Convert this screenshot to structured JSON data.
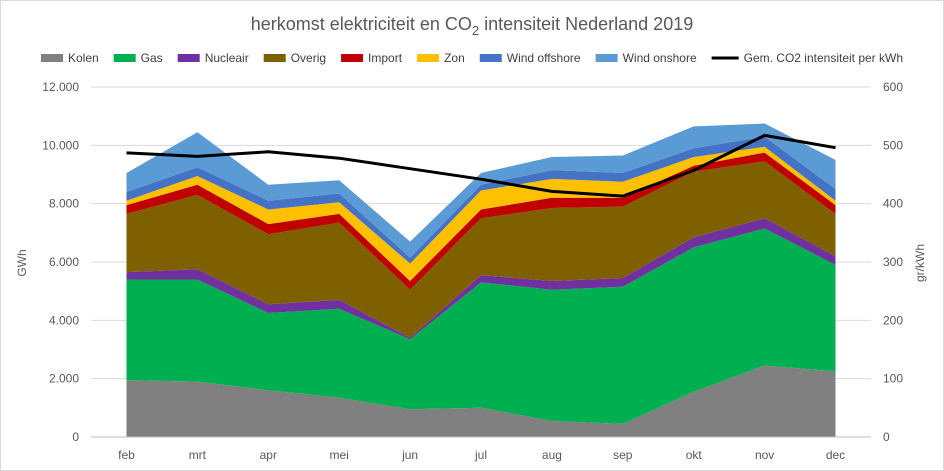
{
  "chart_data": {
    "type": "area",
    "title": {
      "main": "herkomst elektriciteit en CO",
      "subscript": "2",
      "rest": " intensiteit Nederland 2019"
    },
    "categories": [
      "feb",
      "mrt",
      "apr",
      "mei",
      "jun",
      "jul",
      "aug",
      "sep",
      "okt",
      "nov",
      "dec"
    ],
    "ylabel": "GWh",
    "ylabel_right": "gr/kWh",
    "ylim": [
      0,
      12000
    ],
    "ylim_right": [
      0,
      600
    ],
    "yticks": [
      "0",
      "2.000",
      "4.000",
      "6.000",
      "8.000",
      "10.000",
      "12.000"
    ],
    "yticks_right": [
      "0",
      "100",
      "200",
      "300",
      "400",
      "500",
      "600"
    ],
    "grid": true,
    "legend_position": "top",
    "stacked": true,
    "series": [
      {
        "name": "Kolen",
        "color": "#808080",
        "values": [
          1950,
          1900,
          1600,
          1350,
          950,
          1000,
          550,
          450,
          1550,
          2450,
          2250
        ]
      },
      {
        "name": "Gas",
        "color": "#00b050",
        "values": [
          3450,
          3500,
          2650,
          3050,
          2400,
          4300,
          4500,
          4700,
          4950,
          4700,
          3650
        ]
      },
      {
        "name": "Nucleair",
        "color": "#7030a0",
        "values": [
          250,
          350,
          300,
          300,
          50,
          250,
          300,
          300,
          350,
          350,
          300
        ]
      },
      {
        "name": "Overig",
        "color": "#7f6000",
        "values": [
          2000,
          2550,
          2400,
          2650,
          1650,
          1950,
          2500,
          2450,
          2250,
          1950,
          1450
        ]
      },
      {
        "name": "Import",
        "color": "#c00000",
        "values": [
          300,
          350,
          350,
          300,
          300,
          300,
          350,
          300,
          200,
          300,
          300
        ]
      },
      {
        "name": "Zon",
        "color": "#ffc000",
        "values": [
          150,
          300,
          500,
          400,
          600,
          650,
          650,
          550,
          300,
          200,
          150
        ]
      },
      {
        "name": "Wind offshore",
        "color": "#4472c4",
        "values": [
          300,
          300,
          300,
          300,
          200,
          200,
          300,
          300,
          300,
          350,
          400
        ]
      },
      {
        "name": "Wind onshore",
        "color": "#5b9bd5",
        "values": [
          650,
          1200,
          550,
          450,
          550,
          400,
          450,
          600,
          750,
          450,
          1000
        ]
      },
      {
        "name": "Gem. CO2 intensiteit per kWh",
        "color": "#000000",
        "axis": "right",
        "type": "line",
        "values": [
          487,
          481,
          489,
          478,
          460,
          442,
          421,
          413,
          457,
          517,
          496
        ]
      }
    ]
  }
}
